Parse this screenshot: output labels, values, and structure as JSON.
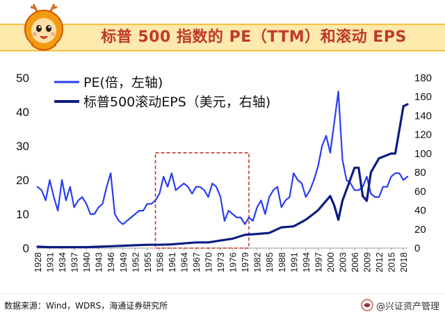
{
  "header": {
    "title": "标普 500 指数的 PE（TTM）和滚动 EPS"
  },
  "footer": {
    "source": "数据来源：Wind，WDRS，海通证券研究所",
    "brand": "@兴证资产管理"
  },
  "colors": {
    "pe": "#2a3df0",
    "eps": "#0d1c82",
    "highlight": "#c0392b",
    "title": "#c0392b",
    "title_bg": "#fde9ac"
  },
  "chart_data": {
    "type": "line",
    "title": "标普 500 指数的 PE（TTM）和滚动 EPS",
    "x_tick_labels": [
      "1928",
      "1931",
      "1934",
      "1937",
      "1940",
      "1943",
      "1946",
      "1949",
      "1952",
      "1955",
      "1958",
      "1961",
      "1964",
      "1967",
      "1970",
      "1973",
      "1976",
      "1979",
      "1982",
      "1985",
      "1988",
      "1991",
      "1994",
      "1997",
      "2000",
      "2003",
      "2006",
      "2009",
      "2012",
      "2015",
      "2018"
    ],
    "xlim": [
      1928,
      2019
    ],
    "left_axis": {
      "ylim": [
        0,
        50
      ],
      "ticks": [
        "0",
        "10",
        "20",
        "30",
        "40",
        "50"
      ]
    },
    "right_axis": {
      "ylim": [
        0,
        180
      ],
      "ticks": [
        "0",
        "20",
        "40",
        "60",
        "80",
        "100",
        "120",
        "140",
        "160",
        "180"
      ]
    },
    "legend": {
      "placement": "top-left",
      "entries": [
        "PE(倍，左轴)",
        "标普500滚动EPS（美元，右轴)"
      ]
    },
    "highlight_region": {
      "x_range": [
        1957,
        1980
      ],
      "y_range": [
        0,
        28
      ]
    },
    "series": [
      {
        "name": "PE(倍，左轴)",
        "axis": "left",
        "x": [
          1928,
          1929,
          1930,
          1931,
          1932,
          1933,
          1934,
          1935,
          1936,
          1937,
          1938,
          1939,
          1940,
          1941,
          1942,
          1943,
          1944,
          1945,
          1946,
          1947,
          1948,
          1949,
          1950,
          1951,
          1952,
          1953,
          1954,
          1955,
          1956,
          1957,
          1958,
          1959,
          1960,
          1961,
          1962,
          1963,
          1964,
          1965,
          1966,
          1967,
          1968,
          1969,
          1970,
          1971,
          1972,
          1973,
          1974,
          1975,
          1976,
          1977,
          1978,
          1979,
          1980,
          1981,
          1982,
          1983,
          1984,
          1985,
          1986,
          1987,
          1988,
          1989,
          1990,
          1991,
          1992,
          1993,
          1994,
          1995,
          1996,
          1997,
          1998,
          1999,
          2000,
          2001,
          2002,
          2003,
          2004,
          2005,
          2006,
          2007,
          2008,
          2009,
          2010,
          2011,
          2012,
          2013,
          2014,
          2015,
          2016,
          2017,
          2018,
          2019
        ],
        "values": [
          18,
          17,
          14,
          20,
          15,
          11,
          20,
          14,
          18,
          12,
          14,
          15,
          13,
          10,
          10,
          12,
          13,
          18,
          22,
          10,
          8,
          7,
          8,
          9,
          10,
          11,
          11,
          13,
          13,
          14,
          16,
          21,
          18,
          22,
          17,
          18,
          19,
          18,
          16,
          18,
          18,
          17,
          15,
          19,
          18,
          15,
          8,
          11,
          10,
          9,
          9,
          7,
          9,
          8,
          12,
          14,
          10,
          15,
          17,
          18,
          12,
          14,
          15,
          22,
          20,
          19,
          15,
          17,
          20,
          24,
          30,
          33,
          28,
          37,
          46,
          26,
          20,
          19,
          17,
          17,
          18,
          21,
          16,
          15,
          15,
          18,
          18,
          21,
          22,
          22,
          20,
          21
        ]
      },
      {
        "name": "标普500滚动EPS（美元，右轴)",
        "axis": "right",
        "x": [
          1928,
          1931,
          1934,
          1937,
          1940,
          1943,
          1946,
          1949,
          1952,
          1955,
          1958,
          1961,
          1964,
          1967,
          1970,
          1973,
          1976,
          1979,
          1982,
          1985,
          1988,
          1991,
          1994,
          1997,
          2000,
          2001,
          2002,
          2003,
          2006,
          2007,
          2008,
          2009,
          2010,
          2012,
          2015,
          2016,
          2018,
          2019
        ],
        "values": [
          1.5,
          1,
          1,
          1,
          1,
          1.5,
          2,
          2.5,
          3,
          3.5,
          3.5,
          4,
          5,
          6,
          6,
          8,
          10,
          14,
          15,
          16,
          22,
          23,
          30,
          40,
          55,
          45,
          30,
          50,
          85,
          85,
          55,
          50,
          80,
          95,
          100,
          100,
          150,
          152
        ]
      }
    ]
  }
}
